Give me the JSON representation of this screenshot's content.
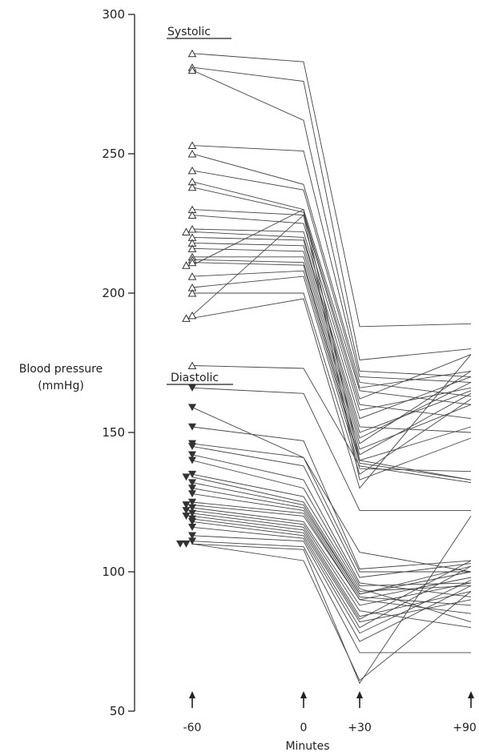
{
  "chart_data": {
    "type": "line",
    "title": "",
    "ylabel": "Blood pressure",
    "ylabel_unit": "(mmHg)",
    "xlabel": "Minutes",
    "ylim": [
      50,
      300
    ],
    "yticks": [
      50,
      100,
      150,
      200,
      250,
      300
    ],
    "x": [
      -60,
      0,
      30,
      90
    ],
    "xtick_labels": [
      "-60",
      "0",
      "+30",
      "+90"
    ],
    "grid": false,
    "colors": {
      "line": "#444444",
      "axis": "#222222",
      "marker": "#333333"
    },
    "series_labels": [
      "Systolic",
      "Diastolic"
    ],
    "series": [
      {
        "name": "Systolic",
        "marker": "open-triangle-up",
        "subjects": [
          [
            286,
            283,
            188,
            189
          ],
          [
            281,
            276,
            176,
            180
          ],
          [
            280,
            262,
            172,
            170
          ],
          [
            253,
            251,
            170,
            168
          ],
          [
            250,
            239,
            168,
            163
          ],
          [
            244,
            237,
            166,
            172
          ],
          [
            240,
            230,
            165,
            160
          ],
          [
            238,
            229,
            162,
            178
          ],
          [
            230,
            228,
            160,
            155
          ],
          [
            228,
            225,
            158,
            166
          ],
          [
            223,
            222,
            155,
            170
          ],
          [
            222,
            220,
            152,
            150
          ],
          [
            220,
            219,
            150,
            165
          ],
          [
            218,
            217,
            148,
            168
          ],
          [
            216,
            215,
            146,
            172
          ],
          [
            213,
            213,
            144,
            160
          ],
          [
            212,
            211,
            142,
            164
          ],
          [
            211,
            210,
            140,
            152
          ],
          [
            210,
            230,
            140,
            133
          ],
          [
            206,
            208,
            139,
            133
          ],
          [
            202,
            206,
            137,
            136
          ],
          [
            200,
            200,
            135,
            162
          ],
          [
            192,
            228,
            133,
            148
          ],
          [
            191,
            198,
            130,
            178
          ],
          [
            174,
            173,
            138,
            132
          ]
        ]
      },
      {
        "name": "Diastolic",
        "marker": "filled-triangle-down",
        "subjects": [
          [
            166,
            164,
            122,
            122
          ],
          [
            159,
            141,
            107,
            100
          ],
          [
            152,
            147,
            101,
            104
          ],
          [
            146,
            141,
            100,
            100
          ],
          [
            145,
            138,
            98,
            103
          ],
          [
            142,
            133,
            96,
            91
          ],
          [
            140,
            130,
            95,
            96
          ],
          [
            135,
            127,
            94,
            82
          ],
          [
            134,
            125,
            93,
            95
          ],
          [
            132,
            124,
            92,
            100
          ],
          [
            130,
            123,
            92,
            102
          ],
          [
            128,
            122,
            91,
            88
          ],
          [
            125,
            121,
            90,
            98
          ],
          [
            124,
            120,
            90,
            85
          ],
          [
            123,
            118,
            88,
            96
          ],
          [
            122,
            117,
            86,
            80
          ],
          [
            121,
            116,
            84,
            93
          ],
          [
            120,
            115,
            83,
            104
          ],
          [
            119,
            114,
            82,
            90
          ],
          [
            118,
            113,
            80,
            102
          ],
          [
            116,
            112,
            78,
            97
          ],
          [
            113,
            111,
            75,
            95
          ],
          [
            111,
            109,
            71,
            71
          ],
          [
            110,
            108,
            60,
            120
          ],
          [
            110,
            104,
            61,
            93
          ]
        ]
      }
    ]
  }
}
